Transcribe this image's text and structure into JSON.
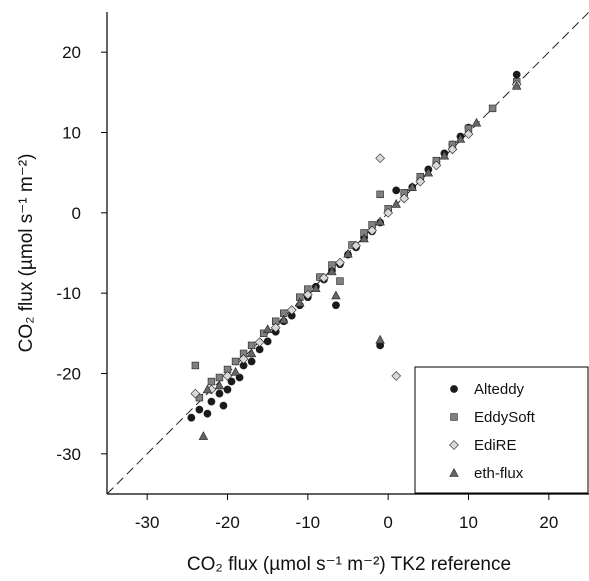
{
  "chart_data": {
    "type": "scatter",
    "xlabel": "CO₂ flux (µmol s⁻¹ m⁻²) TK2 reference",
    "ylabel": "CO₂ flux (µmol s⁻¹ m⁻²)",
    "xlim": [
      -35,
      25
    ],
    "ylim": [
      -35,
      25
    ],
    "x_ticks": [
      -30,
      -20,
      -10,
      0,
      10,
      20
    ],
    "y_ticks": [
      -30,
      -20,
      -10,
      0,
      10,
      20
    ],
    "x_tick_labels": [
      "-30",
      "-20",
      "-10",
      "0",
      "10",
      "20"
    ],
    "y_tick_labels": [
      "-30",
      "-20",
      "-10",
      "0",
      "10",
      "20"
    ],
    "reference_line": "1:1 dashed",
    "grid": false,
    "legend_position": "bottom-right",
    "series": [
      {
        "name": "Alteddy",
        "marker": "circle",
        "color": "#1a1a1a",
        "points": [
          [
            -24.5,
            -25.5
          ],
          [
            -23.5,
            -24.5
          ],
          [
            -22.5,
            -25
          ],
          [
            -22,
            -23.5
          ],
          [
            -21,
            -22.5
          ],
          [
            -20.5,
            -24
          ],
          [
            -20,
            -22
          ],
          [
            -19.5,
            -21
          ],
          [
            -18.5,
            -20.5
          ],
          [
            -18,
            -19
          ],
          [
            -17,
            -18.5
          ],
          [
            -16,
            -17
          ],
          [
            -15,
            -16
          ],
          [
            -14,
            -14.8
          ],
          [
            -13,
            -13.5
          ],
          [
            -12,
            -12.8
          ],
          [
            -11,
            -11.5
          ],
          [
            -10,
            -10.5
          ],
          [
            -9,
            -9.2
          ],
          [
            -8,
            -8.3
          ],
          [
            -7,
            -7.2
          ],
          [
            -6.5,
            -11.5
          ],
          [
            -6,
            -6.4
          ],
          [
            -5,
            -5.2
          ],
          [
            -4,
            -4.3
          ],
          [
            -3,
            -3.1
          ],
          [
            -2,
            -2.3
          ],
          [
            -1,
            -16.5
          ],
          [
            -1,
            -1.2
          ],
          [
            0,
            0.2
          ],
          [
            1,
            2.8
          ],
          [
            2,
            2.4
          ],
          [
            3,
            3.2
          ],
          [
            4,
            4.3
          ],
          [
            5,
            5.4
          ],
          [
            6,
            6.3
          ],
          [
            7,
            7.4
          ],
          [
            8,
            8.5
          ],
          [
            9,
            9.5
          ],
          [
            10,
            10.6
          ],
          [
            16,
            17.2
          ]
        ]
      },
      {
        "name": "EddySoft",
        "marker": "square",
        "color": "#808080",
        "points": [
          [
            -24,
            -19
          ],
          [
            -23.5,
            -23
          ],
          [
            -22,
            -21
          ],
          [
            -21,
            -20.5
          ],
          [
            -20,
            -19.5
          ],
          [
            -19,
            -18.5
          ],
          [
            -18,
            -17.5
          ],
          [
            -17,
            -16.5
          ],
          [
            -15.5,
            -15
          ],
          [
            -14,
            -13.5
          ],
          [
            -13,
            -12.5
          ],
          [
            -11,
            -10.5
          ],
          [
            -10,
            -9.5
          ],
          [
            -8.5,
            -8
          ],
          [
            -7,
            -6.5
          ],
          [
            -6,
            -8.5
          ],
          [
            -4.5,
            -4
          ],
          [
            -3,
            -2.5
          ],
          [
            -2,
            -1.5
          ],
          [
            -1,
            2.3
          ],
          [
            0,
            0.5
          ],
          [
            2,
            2.5
          ],
          [
            4,
            4.5
          ],
          [
            6,
            6.5
          ],
          [
            8,
            8.5
          ],
          [
            10,
            10.5
          ],
          [
            13,
            13
          ],
          [
            16,
            16.3
          ]
        ]
      },
      {
        "name": "EdiRE",
        "marker": "diamond",
        "color": "#d9d9d9",
        "points": [
          [
            -24,
            -22.5
          ],
          [
            -22,
            -22
          ],
          [
            -20,
            -20.3
          ],
          [
            -18,
            -18.2
          ],
          [
            -16,
            -16.1
          ],
          [
            -14,
            -14.3
          ],
          [
            -12,
            -12.1
          ],
          [
            -10,
            -10.2
          ],
          [
            -8,
            -8.1
          ],
          [
            -6,
            -6.2
          ],
          [
            -4,
            -4.1
          ],
          [
            -2,
            -2.2
          ],
          [
            -1,
            6.8
          ],
          [
            0,
            0
          ],
          [
            1,
            -20.3
          ],
          [
            2,
            1.8
          ],
          [
            4,
            3.9
          ],
          [
            6,
            5.9
          ],
          [
            8,
            7.9
          ],
          [
            10,
            9.8
          ],
          [
            16,
            16
          ]
        ]
      },
      {
        "name": "eth-flux",
        "marker": "triangle",
        "color": "#666666",
        "points": [
          [
            -23,
            -27.8
          ],
          [
            -22.5,
            -22
          ],
          [
            -21,
            -21.5
          ],
          [
            -19,
            -19.8
          ],
          [
            -17,
            -17.5
          ],
          [
            -15,
            -14.5
          ],
          [
            -13,
            -13.3
          ],
          [
            -11,
            -11.2
          ],
          [
            -9,
            -9.4
          ],
          [
            -7,
            -7.3
          ],
          [
            -6.5,
            -10.3
          ],
          [
            -5,
            -5.1
          ],
          [
            -3,
            -3.2
          ],
          [
            -1,
            -15.8
          ],
          [
            -1,
            -1.1
          ],
          [
            1,
            1.1
          ],
          [
            3,
            3.2
          ],
          [
            5,
            5
          ],
          [
            7,
            7.1
          ],
          [
            9,
            9.2
          ],
          [
            11,
            11.2
          ],
          [
            16,
            15.8
          ]
        ]
      }
    ]
  }
}
